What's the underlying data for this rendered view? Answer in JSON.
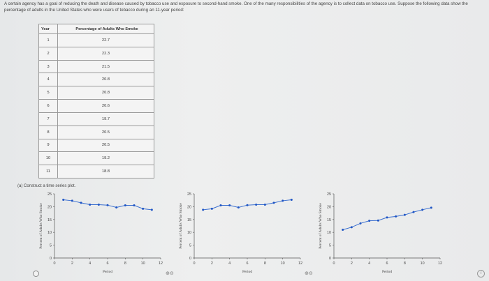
{
  "intro": "A certain agency has a goal of reducing the death and disease caused by tobacco use and exposure to second-hand smoke. One of the many responsibilities of the agency is to collect data on tobacco use. Suppose the following data show the percentage of adults in the United States who were users of tobacco during an 11-year period:",
  "table": {
    "headers": [
      "Year",
      "Percentage of Adults Who Smoke"
    ],
    "rows": [
      {
        "year": "1",
        "pct": "22.7"
      },
      {
        "year": "2",
        "pct": "22.3"
      },
      {
        "year": "3",
        "pct": "21.5"
      },
      {
        "year": "4",
        "pct": "20.8"
      },
      {
        "year": "5",
        "pct": "20.8"
      },
      {
        "year": "6",
        "pct": "20.6"
      },
      {
        "year": "7",
        "pct": "19.7"
      },
      {
        "year": "8",
        "pct": "20.5"
      },
      {
        "year": "9",
        "pct": "20.5"
      },
      {
        "year": "10",
        "pct": "19.2"
      },
      {
        "year": "11",
        "pct": "18.8"
      }
    ]
  },
  "question": "(a)  Construct a time series plot.",
  "zoom_icon": "zoom-icons",
  "zoom_glyph": "⊕⊖",
  "info_glyph": "i",
  "chart_data": [
    {
      "type": "line",
      "xlabel": "Period",
      "ylabel": "Percent of Adults Who Smoke",
      "xlim": [
        0,
        12
      ],
      "ylim": [
        0,
        25
      ],
      "xticks": [
        0,
        2,
        4,
        6,
        8,
        10,
        12
      ],
      "yticks": [
        0,
        5,
        10,
        15,
        20,
        25
      ],
      "x": [
        1,
        2,
        3,
        4,
        5,
        6,
        7,
        8,
        9,
        10,
        11
      ],
      "y": [
        22.7,
        22.3,
        21.5,
        20.8,
        20.8,
        20.6,
        19.7,
        20.5,
        20.5,
        19.2,
        18.8
      ]
    },
    {
      "type": "line",
      "xlabel": "Period",
      "ylabel": "Percent of Adults Who Smoke",
      "xlim": [
        0,
        12
      ],
      "ylim": [
        0,
        25
      ],
      "xticks": [
        0,
        2,
        4,
        6,
        8,
        10,
        12
      ],
      "yticks": [
        0,
        5,
        10,
        15,
        20,
        25
      ],
      "x": [
        1,
        2,
        3,
        4,
        5,
        6,
        7,
        8,
        9,
        10,
        11
      ],
      "y": [
        18.8,
        19.2,
        20.5,
        20.5,
        19.7,
        20.6,
        20.8,
        20.8,
        21.5,
        22.3,
        22.7
      ]
    },
    {
      "type": "line",
      "xlabel": "Period",
      "ylabel": "Percent of Adults Who Smoke",
      "xlim": [
        0,
        12
      ],
      "ylim": [
        0,
        25
      ],
      "xticks": [
        0,
        2,
        4,
        6,
        8,
        10,
        12
      ],
      "yticks": [
        0,
        5,
        10,
        15,
        20,
        25
      ],
      "x": [
        1,
        2,
        3,
        4,
        5,
        6,
        7,
        8,
        9,
        10,
        11
      ],
      "y": [
        11,
        12,
        13.5,
        14.5,
        14.6,
        15.8,
        16.2,
        16.8,
        17.9,
        18.8,
        19.6
      ]
    }
  ]
}
